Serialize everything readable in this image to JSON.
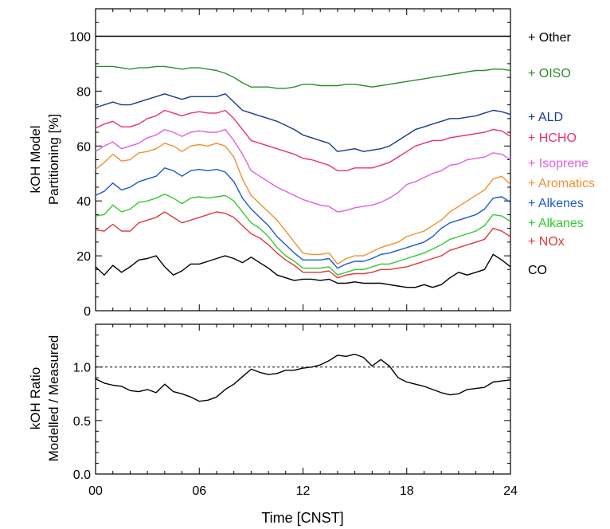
{
  "chart_data": [
    {
      "type": "line",
      "ylabel_line1": "kOH Model",
      "ylabel_line2": "Partitioning [%]",
      "xlim": [
        0,
        24
      ],
      "ylim": [
        0,
        110
      ],
      "yticks": [
        0,
        20,
        40,
        60,
        80,
        100
      ],
      "ytick_labels": [
        "0",
        "20",
        "40",
        "60",
        "80",
        "100"
      ],
      "x": [
        0,
        0.5,
        1,
        1.5,
        2,
        2.5,
        3,
        3.5,
        4,
        4.5,
        5,
        5.5,
        6,
        6.5,
        7,
        7.5,
        8,
        8.5,
        9,
        9.5,
        10,
        10.5,
        11,
        11.5,
        12,
        12.5,
        13,
        13.5,
        14,
        14.5,
        15,
        15.5,
        16,
        16.5,
        17,
        17.5,
        18,
        18.5,
        19,
        19.5,
        20,
        20.5,
        21,
        21.5,
        22,
        22.5,
        23,
        23.5,
        24
      ],
      "series": [
        {
          "name": "+ Other",
          "color": "#000000",
          "values": [
            100,
            100,
            100,
            100,
            100,
            100,
            100,
            100,
            100,
            100,
            100,
            100,
            100,
            100,
            100,
            100,
            100,
            100,
            100,
            100,
            100,
            100,
            100,
            100,
            100,
            100,
            100,
            100,
            100,
            100,
            100,
            100,
            100,
            100,
            100,
            100,
            100,
            100,
            100,
            100,
            100,
            100,
            100,
            100,
            100,
            100,
            100,
            100,
            100
          ]
        },
        {
          "name": "+ OISO",
          "color": "#2e8b2e",
          "values": [
            89,
            89,
            89,
            88.5,
            88,
            88.5,
            88.5,
            89,
            89,
            88.5,
            88,
            88.5,
            88.5,
            88,
            87.5,
            86.5,
            85,
            83,
            81.5,
            81.5,
            81.5,
            81,
            81,
            81.5,
            82.5,
            82.5,
            82,
            82,
            82,
            82.5,
            82.5,
            82,
            81.5,
            82,
            82.5,
            83,
            83.5,
            84,
            84.5,
            85,
            85.5,
            86,
            86.5,
            87,
            87.5,
            87.5,
            88,
            88,
            87.5
          ]
        },
        {
          "name": "+ ALD",
          "color": "#1a3a8c",
          "values": [
            74,
            75,
            76,
            75,
            75,
            76,
            77,
            78,
            79,
            78,
            77,
            78,
            78,
            78,
            78,
            79,
            76,
            73,
            72,
            71,
            70,
            69,
            67.5,
            66,
            64,
            63,
            62,
            61,
            58,
            58.5,
            59,
            58,
            58.5,
            59,
            60,
            62,
            64,
            66,
            67,
            68,
            69,
            70,
            70,
            70.5,
            71,
            72,
            73,
            72.5,
            71.5
          ]
        },
        {
          "name": "+ HCHO",
          "color": "#e8336e",
          "values": [
            66.5,
            68,
            69,
            67,
            67,
            68,
            70,
            71,
            73,
            72,
            71,
            72,
            72.5,
            72,
            72,
            73,
            70,
            66,
            62,
            61,
            60,
            59,
            58,
            57,
            55.5,
            55,
            54,
            53,
            51,
            51,
            52,
            52,
            52,
            53,
            54,
            56,
            58,
            60,
            61,
            62,
            62,
            63,
            63.5,
            64,
            64.5,
            65,
            66,
            65.5,
            63.5
          ]
        },
        {
          "name": "+ Isoprene",
          "color": "#e060e0",
          "values": [
            58,
            60,
            61.5,
            59,
            60,
            61,
            63,
            64,
            66,
            65,
            63.5,
            65,
            65.5,
            65,
            65,
            66,
            62,
            57,
            51,
            49,
            47,
            45,
            43.5,
            42,
            40.5,
            39.5,
            38.5,
            38,
            36,
            36.5,
            37.5,
            38,
            38.5,
            39.5,
            41,
            43,
            46,
            47,
            48.5,
            50,
            51,
            53,
            53.5,
            55,
            55.5,
            56,
            57.5,
            57,
            55
          ]
        },
        {
          "name": "+ Aromatics",
          "color": "#f09030",
          "values": [
            51.5,
            54,
            57,
            54.5,
            55,
            57.5,
            58,
            59,
            61,
            60,
            58,
            60,
            60.5,
            60,
            61,
            60,
            56,
            48,
            42,
            39,
            36,
            33,
            29,
            25,
            21,
            20.5,
            20.5,
            21,
            17,
            19,
            20,
            20,
            21.5,
            23,
            24,
            25,
            27,
            28,
            29,
            31,
            33,
            36,
            38,
            40,
            42,
            44,
            48,
            49,
            46
          ]
        },
        {
          "name": "+ Alkenes",
          "color": "#1a5ad0",
          "values": [
            42,
            43.5,
            46.5,
            44,
            45,
            47,
            48,
            49,
            52,
            51,
            49,
            51,
            51.5,
            51,
            51.5,
            50.5,
            47,
            41,
            37,
            34,
            31,
            27,
            24,
            21,
            18.5,
            18.5,
            18.5,
            19,
            15.5,
            17,
            18,
            18,
            19,
            20.5,
            21,
            22,
            23,
            24,
            25,
            27,
            30,
            32,
            33,
            34,
            35,
            37,
            41,
            41.5,
            39.5
          ]
        },
        {
          "name": "+ Alkanes",
          "color": "#2ecc2e",
          "values": [
            34.5,
            35,
            38.5,
            36,
            37,
            39.5,
            40,
            41,
            42.5,
            41,
            39,
            41,
            41.5,
            41,
            41.5,
            42,
            40,
            36,
            32,
            30,
            27,
            23,
            20,
            18,
            15.5,
            15.5,
            15.5,
            16,
            13,
            14,
            15,
            15,
            16,
            17,
            17,
            18,
            19,
            20,
            21,
            22.5,
            24,
            26,
            27,
            28,
            29,
            31,
            35,
            34.5,
            32.5
          ]
        },
        {
          "name": "+ NOx",
          "color": "#e03838",
          "values": [
            29.5,
            29,
            31.5,
            29,
            29,
            32,
            33,
            34,
            36,
            34,
            32,
            33,
            34,
            35,
            36,
            35.5,
            34,
            31,
            28,
            26.5,
            24,
            21,
            18.5,
            16.5,
            14,
            14,
            14,
            14.5,
            12,
            13,
            13.5,
            13.5,
            14,
            15,
            15,
            15.5,
            16,
            17,
            18,
            19,
            20,
            22,
            23,
            24,
            25,
            26,
            30,
            29,
            27
          ]
        },
        {
          "name": "CO",
          "color": "#000000",
          "values": [
            16,
            13,
            16.5,
            14,
            16,
            18.5,
            19,
            20,
            16,
            13,
            14.5,
            17,
            17,
            18,
            19,
            20,
            19,
            17.5,
            19.5,
            17.5,
            15.5,
            13,
            12,
            11,
            11.5,
            11.5,
            11,
            11.5,
            10,
            10,
            10.5,
            10,
            10,
            10,
            9.5,
            9,
            8.5,
            8.5,
            9.5,
            8.5,
            9.5,
            12,
            14,
            13,
            14,
            15,
            20.5,
            18.5,
            16
          ]
        }
      ]
    },
    {
      "type": "line",
      "xlabel": "Time [CNST]",
      "ylabel_line1": "kOH Ratio",
      "ylabel_line2": "Modelled / Measured",
      "xlim": [
        0,
        24
      ],
      "ylim": [
        0,
        1.4
      ],
      "xticks": [
        0,
        6,
        12,
        18,
        24
      ],
      "xtick_labels": [
        "00",
        "06",
        "12",
        "18",
        "24"
      ],
      "yticks": [
        0,
        0.5,
        1.0
      ],
      "ytick_labels": [
        "0.0",
        "0.5",
        "1.0"
      ],
      "reference_line": 1.0,
      "x": [
        0,
        0.5,
        1,
        1.5,
        2,
        2.5,
        3,
        3.5,
        4,
        4.5,
        5,
        5.5,
        6,
        6.5,
        7,
        7.5,
        8,
        8.5,
        9,
        9.5,
        10,
        10.5,
        11,
        11.5,
        12,
        12.5,
        13,
        13.5,
        14,
        14.5,
        15,
        15.5,
        16,
        16.5,
        17,
        17.5,
        18,
        18.5,
        19,
        19.5,
        20,
        20.5,
        21,
        21.5,
        22,
        22.5,
        23,
        23.5,
        24
      ],
      "series": [
        {
          "color": "#000000",
          "values": [
            0.89,
            0.85,
            0.83,
            0.82,
            0.78,
            0.77,
            0.79,
            0.76,
            0.84,
            0.77,
            0.75,
            0.72,
            0.68,
            0.69,
            0.72,
            0.79,
            0.84,
            0.91,
            0.98,
            0.95,
            0.93,
            0.94,
            0.97,
            0.97,
            0.99,
            1.0,
            1.02,
            1.06,
            1.11,
            1.1,
            1.12,
            1.09,
            1.01,
            1.07,
            1.01,
            0.9,
            0.86,
            0.84,
            0.82,
            0.79,
            0.76,
            0.74,
            0.75,
            0.79,
            0.8,
            0.81,
            0.86,
            0.87,
            0.88
          ]
        }
      ]
    }
  ]
}
